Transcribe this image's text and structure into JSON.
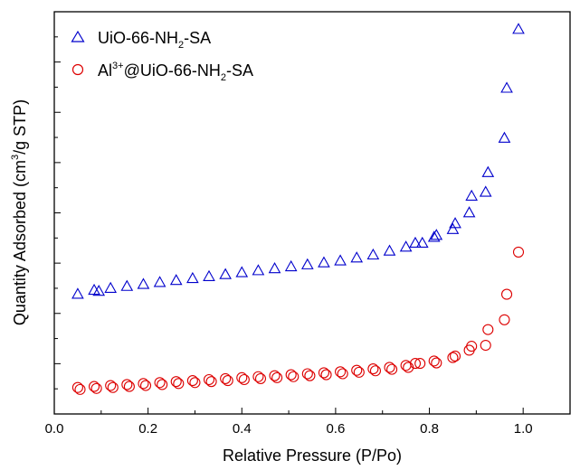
{
  "chart_data": {
    "type": "scatter",
    "xlabel": "Relative Pressure (P/Po)",
    "ylabel_parts": [
      "Quantity Adsorbed (cm",
      "3",
      "/g STP)"
    ],
    "xlim": [
      0.0,
      1.1
    ],
    "x_ticks": [
      "0.0",
      "0.2",
      "0.4",
      "0.6",
      "0.8",
      "1.0"
    ],
    "y_ticks_labeled": false,
    "grid": false,
    "legend_position": "top-left",
    "series": [
      {
        "name": "UiO-66-NH2-SA",
        "label_parts": [
          "UiO-66-NH",
          "2",
          "-SA"
        ],
        "marker": "triangle-open",
        "color": "#0000cc",
        "x": [
          0.05,
          0.085,
          0.095,
          0.12,
          0.155,
          0.19,
          0.225,
          0.26,
          0.295,
          0.33,
          0.365,
          0.4,
          0.435,
          0.47,
          0.505,
          0.54,
          0.575,
          0.61,
          0.645,
          0.68,
          0.715,
          0.75,
          0.77,
          0.785,
          0.81,
          0.815,
          0.85,
          0.855,
          0.885,
          0.89,
          0.92,
          0.925,
          0.96,
          0.965,
          0.99
        ],
        "y": [
          12.2,
          12.6,
          12.5,
          12.8,
          13.0,
          13.2,
          13.4,
          13.6,
          13.8,
          14.0,
          14.2,
          14.4,
          14.6,
          14.8,
          15.0,
          15.2,
          15.4,
          15.6,
          15.9,
          16.2,
          16.6,
          17.0,
          17.4,
          17.4,
          18.0,
          18.2,
          18.8,
          19.4,
          20.5,
          22.2,
          22.6,
          24.6,
          28.1,
          33.2,
          39.2
        ]
      },
      {
        "name": "Al3+@UiO-66-NH2-SA",
        "label_parts": [
          "Al",
          "3+",
          "@UiO-66-NH",
          "2",
          "-SA"
        ],
        "marker": "circle-open",
        "color": "#dd0000",
        "x": [
          0.05,
          0.055,
          0.085,
          0.09,
          0.12,
          0.125,
          0.155,
          0.16,
          0.19,
          0.195,
          0.225,
          0.23,
          0.26,
          0.265,
          0.295,
          0.3,
          0.33,
          0.335,
          0.365,
          0.37,
          0.4,
          0.405,
          0.435,
          0.44,
          0.47,
          0.475,
          0.505,
          0.51,
          0.54,
          0.545,
          0.575,
          0.58,
          0.61,
          0.615,
          0.645,
          0.65,
          0.68,
          0.685,
          0.715,
          0.72,
          0.75,
          0.755,
          0.77,
          0.78,
          0.81,
          0.815,
          0.85,
          0.855,
          0.885,
          0.89,
          0.92,
          0.925,
          0.96,
          0.965,
          0.99
        ],
        "y": [
          2.7,
          2.5,
          2.8,
          2.6,
          2.9,
          2.7,
          3.0,
          2.8,
          3.1,
          2.9,
          3.2,
          3.0,
          3.3,
          3.1,
          3.4,
          3.2,
          3.5,
          3.3,
          3.6,
          3.4,
          3.7,
          3.5,
          3.8,
          3.6,
          3.9,
          3.7,
          4.0,
          3.8,
          4.1,
          3.9,
          4.2,
          4.0,
          4.3,
          4.1,
          4.45,
          4.25,
          4.6,
          4.4,
          4.75,
          4.55,
          4.95,
          4.75,
          5.15,
          5.15,
          5.4,
          5.2,
          5.75,
          5.9,
          6.5,
          6.9,
          7.0,
          8.6,
          9.6,
          12.2,
          16.5
        ]
      }
    ]
  }
}
